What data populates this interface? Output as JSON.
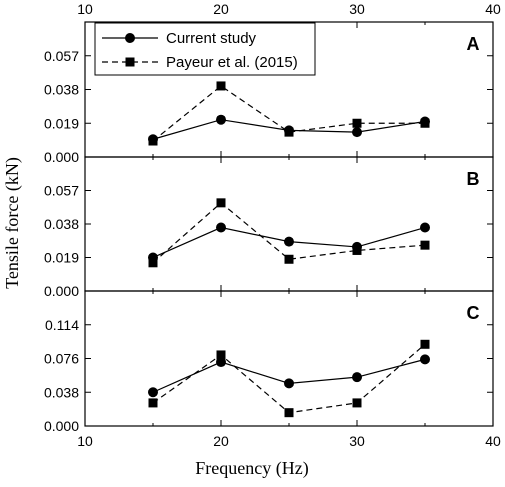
{
  "chart_data": {
    "type": "line",
    "xlabel": "Frequency (Hz)",
    "ylabel": "Tensile force (kN)",
    "xlim": [
      10,
      40
    ],
    "x_ticks": [
      "10",
      "20",
      "30",
      "40"
    ],
    "x": [
      15,
      20,
      25,
      30,
      35
    ],
    "legend": {
      "placement": "top-left",
      "entries": [
        {
          "label": "Current study",
          "marker": "circle",
          "line": "solid"
        },
        {
          "label": "Payeur et al. (2015)",
          "marker": "square",
          "line": "dashed"
        }
      ]
    },
    "panels": [
      {
        "label": "A",
        "ylim": [
          0,
          0.076
        ],
        "y_ticks": [
          "0.000",
          "0.019",
          "0.038",
          "0.057"
        ],
        "series": [
          {
            "name": "Current study",
            "values": [
              0.01,
              0.021,
              0.015,
              0.014,
              0.02
            ]
          },
          {
            "name": "Payeur et al. (2015)",
            "values": [
              0.009,
              0.04,
              0.014,
              0.019,
              0.019
            ]
          }
        ]
      },
      {
        "label": "B",
        "ylim": [
          0,
          0.076
        ],
        "y_ticks": [
          "0.000",
          "0.019",
          "0.038",
          "0.057"
        ],
        "series": [
          {
            "name": "Current study",
            "values": [
              0.019,
              0.036,
              0.028,
              0.025,
              0.036
            ]
          },
          {
            "name": "Payeur et al. (2015)",
            "values": [
              0.016,
              0.05,
              0.018,
              0.023,
              0.026
            ]
          }
        ]
      },
      {
        "label": "C",
        "ylim": [
          0,
          0.152
        ],
        "y_ticks": [
          "0.000",
          "0.038",
          "0.076",
          "0.114"
        ],
        "series": [
          {
            "name": "Current study",
            "values": [
              0.038,
              0.072,
              0.048,
              0.055,
              0.075
            ]
          },
          {
            "name": "Payeur et al. (2015)",
            "values": [
              0.026,
              0.08,
              0.015,
              0.026,
              0.092
            ]
          }
        ]
      }
    ],
    "colors": {
      "series": "#000000",
      "axes": "#000000",
      "background": "#ffffff"
    }
  }
}
